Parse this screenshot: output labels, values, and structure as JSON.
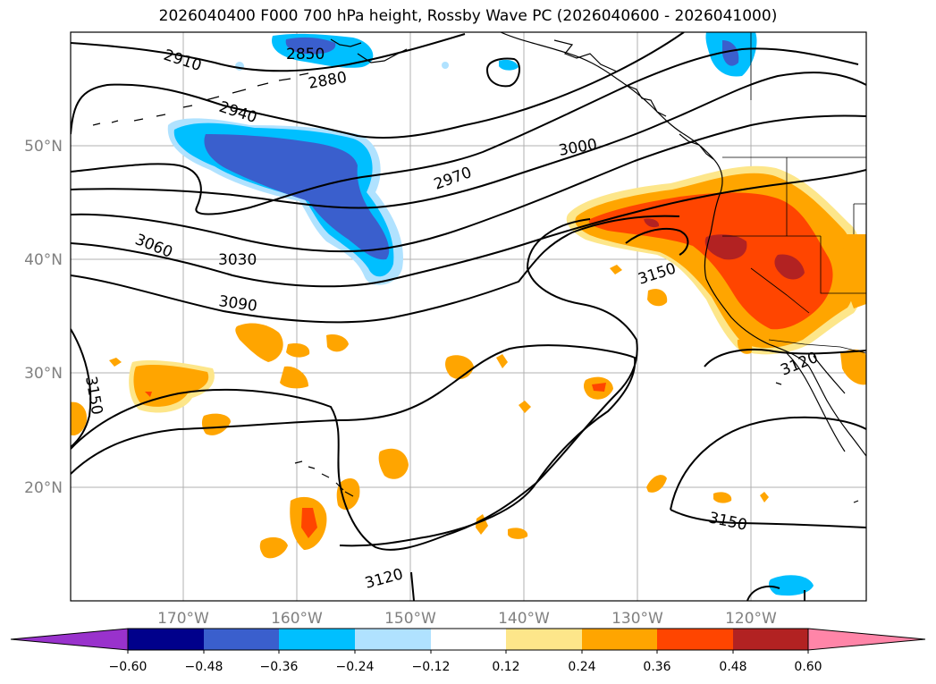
{
  "title": "2026040400 F000 700 hPa height, Rossby Wave PC (2026040600 - 2026041000)",
  "lat_labels": [
    "50°N",
    "40°N",
    "30°N",
    "20°N"
  ],
  "lon_labels": [
    "170°W",
    "160°W",
    "150°W",
    "140°W",
    "130°W",
    "120°W"
  ],
  "contour_labels": [
    "2910",
    "2850",
    "2880",
    "2940",
    "2970",
    "3000",
    "3060",
    "3030",
    "3090",
    "3150",
    "3150",
    "3120",
    "3150",
    "3120"
  ],
  "colorbar": {
    "ticks": [
      "−0.60",
      "−0.48",
      "−0.36",
      "−0.24",
      "−0.12",
      "0.12",
      "0.24",
      "0.36",
      "0.48",
      "0.60"
    ],
    "colors": [
      "#9932cc",
      "#00008b",
      "#3a5fcd",
      "#00bfff",
      "#b0e2ff",
      "#ffffff",
      "#fde68a",
      "#ffa500",
      "#ff4500",
      "#b22222",
      "#ff85a8"
    ]
  }
}
